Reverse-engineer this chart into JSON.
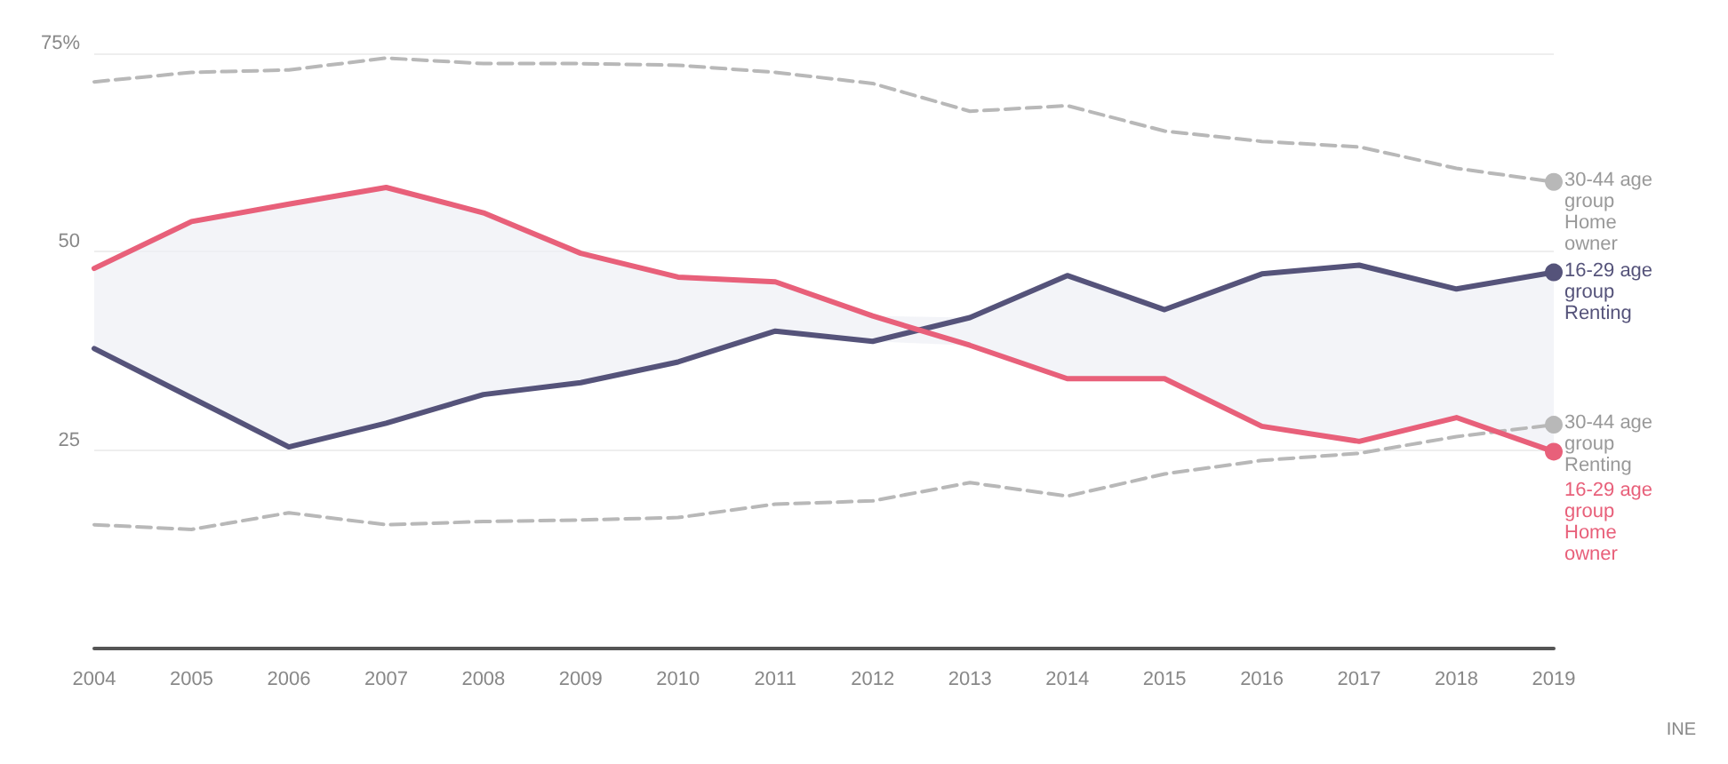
{
  "chart_data": {
    "type": "line",
    "categories": [
      "2004",
      "2005",
      "2006",
      "2007",
      "2008",
      "2009",
      "2010",
      "2011",
      "2012",
      "2013",
      "2014",
      "2015",
      "2016",
      "2017",
      "2018",
      "2019"
    ],
    "ylim": [
      0,
      75
    ],
    "yticks": [
      {
        "value": 25,
        "label": "25"
      },
      {
        "value": 50,
        "label": "50"
      },
      {
        "value": 75,
        "label": "75%"
      }
    ],
    "grid": "y",
    "legend": false,
    "series": [
      {
        "name": "30-44 age group Home owner",
        "color": "#b8b8b8",
        "line_style": "dashed",
        "values": [
          71.4,
          72.6,
          72.9,
          74.4,
          73.7,
          73.7,
          73.5,
          72.6,
          71.2,
          67.7,
          68.4,
          65.2,
          63.9,
          63.2,
          60.5,
          58.8
        ]
      },
      {
        "name": "16-29 age group Renting",
        "color": "#55537a",
        "line_style": "solid",
        "values": [
          37.8,
          31.6,
          25.4,
          28.4,
          32,
          33.5,
          36.1,
          40,
          38.7,
          41.7,
          47,
          42.7,
          47.2,
          48.3,
          45.3,
          47.4
        ]
      },
      {
        "name": "30-44 age group Renting",
        "color": "#b8b8b8",
        "line_style": "dashed",
        "values": [
          15.6,
          15,
          17.1,
          15.6,
          16,
          16.2,
          16.5,
          18.2,
          18.6,
          20.9,
          19.2,
          22,
          23.7,
          24.6,
          26.7,
          28.2
        ]
      },
      {
        "name": "16-29 age group Home owner",
        "color": "#e8607a",
        "line_style": "solid",
        "values": [
          47.9,
          53.8,
          56,
          58.1,
          54.9,
          49.8,
          46.8,
          46.2,
          41.9,
          38.2,
          34,
          34,
          28,
          26.1,
          29.1,
          24.8
        ]
      }
    ],
    "annotations": [
      "INE"
    ]
  }
}
